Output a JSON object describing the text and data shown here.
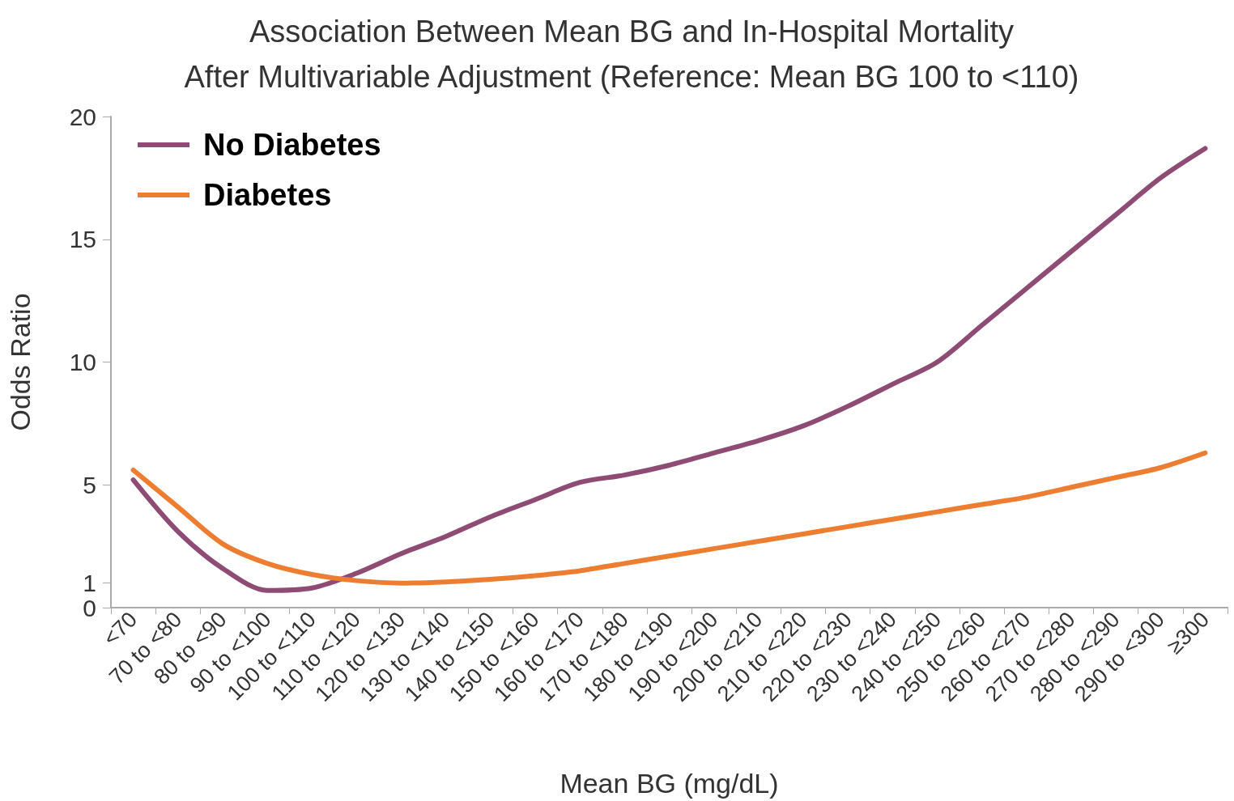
{
  "chart_data": {
    "type": "line",
    "title": "Association Between Mean BG and In-Hospital Mortality\nAfter Multivariable Adjustment (Reference: Mean BG 100 to <110)",
    "xlabel": "Mean BG (mg/dL)",
    "ylabel": "Odds Ratio",
    "categories": [
      "<70",
      "70 to <80",
      "80 to <90",
      "90 to <100",
      "100 to <110",
      "110 to <120",
      "120 to <130",
      "130 to <140",
      "140 to <150",
      "150 to <160",
      "160 to <170",
      "170 to <180",
      "180 to <190",
      "190 to <200",
      "200 to <210",
      "210 to <220",
      "220 to <230",
      "230 to <240",
      "240 to <250",
      "250 to <260",
      "260 to <270",
      "270 to <280",
      "280 to <290",
      "290 to <300",
      "≥300"
    ],
    "series": [
      {
        "name": "No Diabetes",
        "color": "#8e4b74",
        "values": [
          5.2,
          3.1,
          1.6,
          0.7,
          0.8,
          1.4,
          2.2,
          2.9,
          3.7,
          4.4,
          5.1,
          5.4,
          5.8,
          6.3,
          6.8,
          7.4,
          8.2,
          9.1,
          10.0,
          11.5,
          13.0,
          14.5,
          16.0,
          17.5,
          18.7
        ]
      },
      {
        "name": "Diabetes",
        "color": "#ed7d31",
        "values": [
          5.6,
          4.1,
          2.6,
          1.8,
          1.35,
          1.1,
          1.0,
          1.05,
          1.15,
          1.3,
          1.5,
          1.8,
          2.1,
          2.4,
          2.7,
          3.0,
          3.3,
          3.6,
          3.9,
          4.2,
          4.5,
          4.9,
          5.3,
          5.7,
          6.3
        ]
      }
    ],
    "ylim": [
      0,
      20
    ],
    "yticks": [
      0,
      1,
      5,
      10,
      15,
      20
    ],
    "grid": false,
    "legend": "top left",
    "marker": "none",
    "line_style": "solid"
  }
}
